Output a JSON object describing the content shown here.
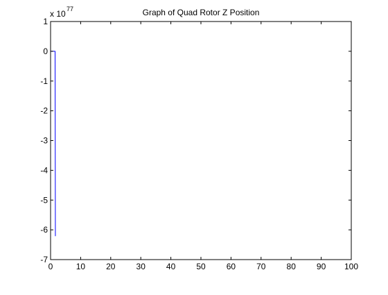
{
  "chart_data": {
    "type": "line",
    "title": "Graph of Quad Rotor Z Position",
    "xlabel": "",
    "ylabel": "",
    "xlim": [
      0,
      100
    ],
    "ylim": [
      -7,
      1
    ],
    "x_ticks": [
      0,
      10,
      20,
      30,
      40,
      50,
      60,
      70,
      80,
      90,
      100
    ],
    "y_ticks": [
      1,
      0,
      -1,
      -2,
      -3,
      -4,
      -5,
      -6,
      -7
    ],
    "exponent_base": "x 10",
    "exponent_power": "77",
    "grid": false,
    "box": true,
    "series": [
      {
        "color": "#0000ff",
        "x": [
          0,
          0.5,
          1,
          1.5,
          1.6,
          1.7
        ],
        "y": [
          0,
          0,
          0,
          0,
          -6.2,
          -6.2
        ]
      }
    ]
  }
}
